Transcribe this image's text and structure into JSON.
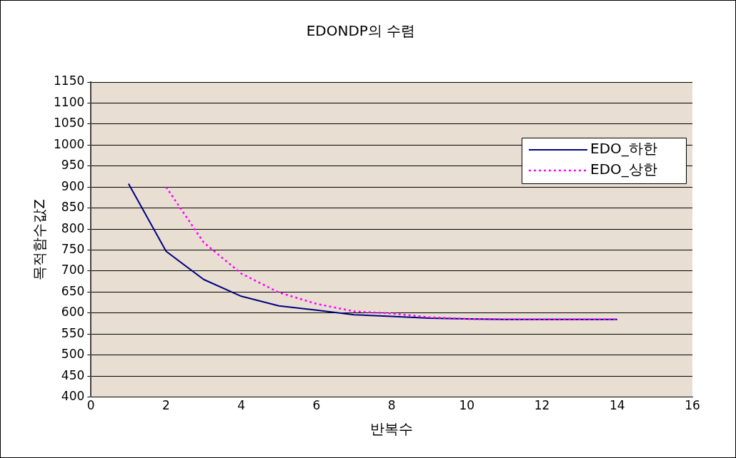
{
  "chart_data": {
    "type": "line",
    "title": "EDONDP의 수렴",
    "xlabel": "반복수",
    "ylabel": "목적함수값Z",
    "xlim": [
      0,
      16
    ],
    "xticks": [
      0,
      2,
      4,
      6,
      8,
      10,
      12,
      14,
      16
    ],
    "ylim": [
      400,
      1150
    ],
    "yticks": [
      400,
      450,
      500,
      550,
      600,
      650,
      700,
      750,
      800,
      850,
      900,
      950,
      1000,
      1050,
      1100,
      1150
    ],
    "grid": "y",
    "legend": "right",
    "marker": "none",
    "series": [
      {
        "name": "EDO_하한",
        "color": "#000080",
        "line_style": "solid",
        "x": [
          1,
          2,
          3,
          4,
          5,
          6,
          7,
          8,
          9,
          10,
          11,
          12,
          13,
          14
        ],
        "values": [
          908,
          747,
          680,
          640,
          617,
          607,
          596,
          592,
          588,
          586,
          585,
          585,
          585,
          585
        ]
      },
      {
        "name": "EDO_상한",
        "color": "#ff00ff",
        "line_style": "dotted",
        "x": [
          2,
          3,
          4,
          5,
          6,
          7,
          8,
          9,
          10,
          11,
          12,
          13,
          14
        ],
        "values": [
          900,
          768,
          694,
          649,
          622,
          604,
          599,
          590,
          586,
          585,
          585,
          585,
          585
        ]
      }
    ]
  }
}
